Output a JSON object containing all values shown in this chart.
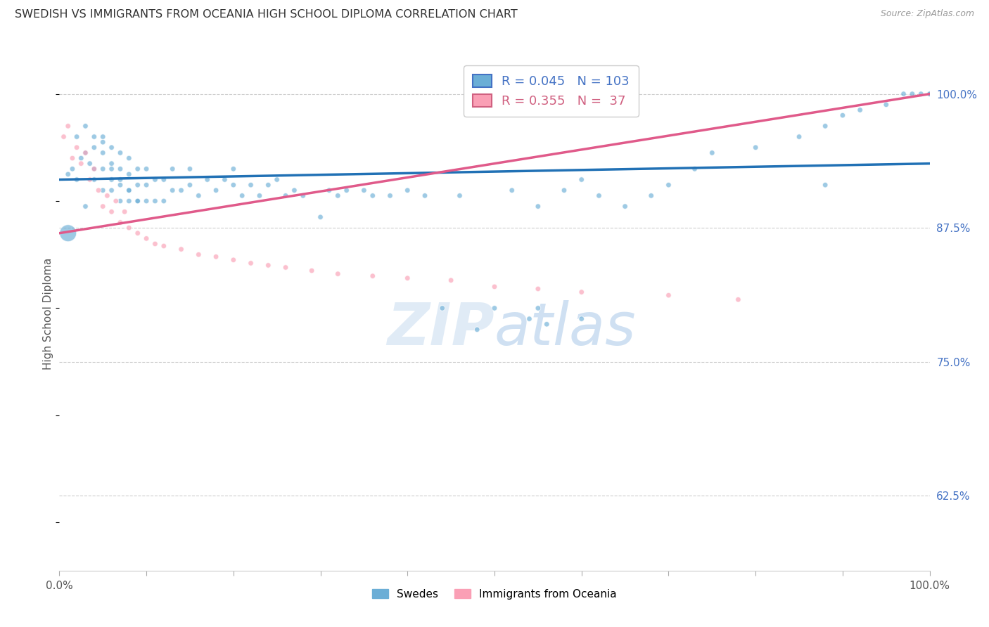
{
  "title": "SWEDISH VS IMMIGRANTS FROM OCEANIA HIGH SCHOOL DIPLOMA CORRELATION CHART",
  "source": "Source: ZipAtlas.com",
  "ylabel": "High School Diploma",
  "watermark": "ZIPatlas",
  "blue_R": 0.045,
  "blue_N": 103,
  "pink_R": 0.355,
  "pink_N": 37,
  "blue_label": "Swedes",
  "pink_label": "Immigrants from Oceania",
  "y_ticks_right": [
    62.5,
    75.0,
    87.5,
    100.0
  ],
  "y_tick_labels_right": [
    "62.5%",
    "75.0%",
    "87.5%",
    "100.0%"
  ],
  "xlim": [
    0.0,
    1.0
  ],
  "ylim": [
    0.555,
    1.035
  ],
  "blue_color": "#6baed6",
  "pink_color": "#fa9fb5",
  "blue_line_color": "#2171b5",
  "pink_line_color": "#e05a8a",
  "grid_color": "#cccccc",
  "blue_points_x": [
    0.01,
    0.015,
    0.02,
    0.025,
    0.03,
    0.03,
    0.035,
    0.04,
    0.04,
    0.04,
    0.05,
    0.05,
    0.05,
    0.05,
    0.06,
    0.06,
    0.06,
    0.06,
    0.07,
    0.07,
    0.07,
    0.07,
    0.08,
    0.08,
    0.08,
    0.08,
    0.09,
    0.09,
    0.09,
    0.1,
    0.1,
    0.1,
    0.11,
    0.11,
    0.12,
    0.12,
    0.13,
    0.13,
    0.14,
    0.15,
    0.15,
    0.16,
    0.17,
    0.18,
    0.19,
    0.2,
    0.2,
    0.21,
    0.22,
    0.23,
    0.24,
    0.25,
    0.26,
    0.27,
    0.28,
    0.3,
    0.31,
    0.32,
    0.33,
    0.35,
    0.36,
    0.38,
    0.4,
    0.42,
    0.44,
    0.46,
    0.48,
    0.5,
    0.52,
    0.55,
    0.55,
    0.58,
    0.6,
    0.62,
    0.65,
    0.68,
    0.7,
    0.73,
    0.75,
    0.8,
    0.85,
    0.88,
    0.9,
    0.92,
    0.95,
    0.97,
    0.98,
    0.99,
    1.0,
    1.0,
    0.54,
    0.56,
    0.88,
    0.6,
    0.01,
    0.02,
    0.03,
    0.04,
    0.05,
    0.06,
    0.07,
    0.08,
    0.09
  ],
  "blue_points_y": [
    0.925,
    0.93,
    0.96,
    0.94,
    0.945,
    0.97,
    0.935,
    0.93,
    0.95,
    0.96,
    0.91,
    0.93,
    0.945,
    0.96,
    0.91,
    0.92,
    0.935,
    0.95,
    0.9,
    0.915,
    0.93,
    0.945,
    0.9,
    0.91,
    0.925,
    0.94,
    0.9,
    0.915,
    0.93,
    0.9,
    0.915,
    0.93,
    0.9,
    0.92,
    0.9,
    0.92,
    0.91,
    0.93,
    0.91,
    0.915,
    0.93,
    0.905,
    0.92,
    0.91,
    0.92,
    0.915,
    0.93,
    0.905,
    0.915,
    0.905,
    0.915,
    0.92,
    0.905,
    0.91,
    0.905,
    0.885,
    0.91,
    0.905,
    0.91,
    0.91,
    0.905,
    0.905,
    0.91,
    0.905,
    0.8,
    0.905,
    0.78,
    0.8,
    0.91,
    0.8,
    0.895,
    0.91,
    0.92,
    0.905,
    0.895,
    0.905,
    0.915,
    0.93,
    0.945,
    0.95,
    0.96,
    0.97,
    0.98,
    0.985,
    0.99,
    1.0,
    1.0,
    1.0,
    1.0,
    1.0,
    0.79,
    0.785,
    0.915,
    0.79,
    0.87,
    0.92,
    0.895,
    0.92,
    0.955,
    0.93,
    0.92,
    0.91,
    0.9
  ],
  "blue_sizes": [
    30,
    30,
    30,
    30,
    30,
    30,
    30,
    30,
    30,
    30,
    30,
    30,
    30,
    30,
    30,
    30,
    30,
    30,
    30,
    30,
    30,
    30,
    30,
    30,
    30,
    30,
    30,
    30,
    30,
    30,
    30,
    30,
    30,
    30,
    30,
    30,
    30,
    30,
    30,
    30,
    30,
    30,
    30,
    30,
    30,
    30,
    30,
    30,
    30,
    30,
    30,
    30,
    30,
    30,
    30,
    30,
    30,
    30,
    30,
    30,
    30,
    30,
    30,
    30,
    30,
    30,
    30,
    30,
    30,
    30,
    30,
    30,
    30,
    30,
    30,
    30,
    30,
    30,
    30,
    30,
    30,
    30,
    30,
    30,
    30,
    30,
    30,
    30,
    30,
    30,
    30,
    30,
    30,
    30,
    300,
    30,
    30,
    30,
    30,
    30,
    30,
    30,
    30
  ],
  "pink_points_x": [
    0.005,
    0.01,
    0.015,
    0.02,
    0.025,
    0.03,
    0.035,
    0.04,
    0.045,
    0.05,
    0.055,
    0.06,
    0.065,
    0.07,
    0.075,
    0.08,
    0.09,
    0.1,
    0.11,
    0.12,
    0.14,
    0.16,
    0.18,
    0.2,
    0.22,
    0.24,
    0.26,
    0.29,
    0.32,
    0.36,
    0.4,
    0.45,
    0.5,
    0.55,
    0.6,
    0.7,
    0.78
  ],
  "pink_points_y": [
    0.96,
    0.97,
    0.94,
    0.95,
    0.935,
    0.945,
    0.92,
    0.93,
    0.91,
    0.895,
    0.905,
    0.89,
    0.9,
    0.88,
    0.89,
    0.875,
    0.87,
    0.865,
    0.86,
    0.858,
    0.855,
    0.85,
    0.848,
    0.845,
    0.842,
    0.84,
    0.838,
    0.835,
    0.832,
    0.83,
    0.828,
    0.826,
    0.82,
    0.818,
    0.815,
    0.812,
    0.808
  ],
  "pink_sizes": [
    30,
    30,
    30,
    30,
    30,
    30,
    30,
    30,
    30,
    30,
    30,
    30,
    30,
    30,
    30,
    30,
    30,
    30,
    30,
    30,
    30,
    30,
    30,
    30,
    30,
    30,
    30,
    30,
    30,
    30,
    30,
    30,
    30,
    30,
    30,
    30,
    30
  ],
  "blue_line_x0": 0.0,
  "blue_line_x1": 1.0,
  "blue_line_y0": 0.92,
  "blue_line_y1": 0.935,
  "pink_line_x0": 0.0,
  "pink_line_x1": 1.0,
  "pink_line_y0": 0.87,
  "pink_line_y1": 1.0
}
